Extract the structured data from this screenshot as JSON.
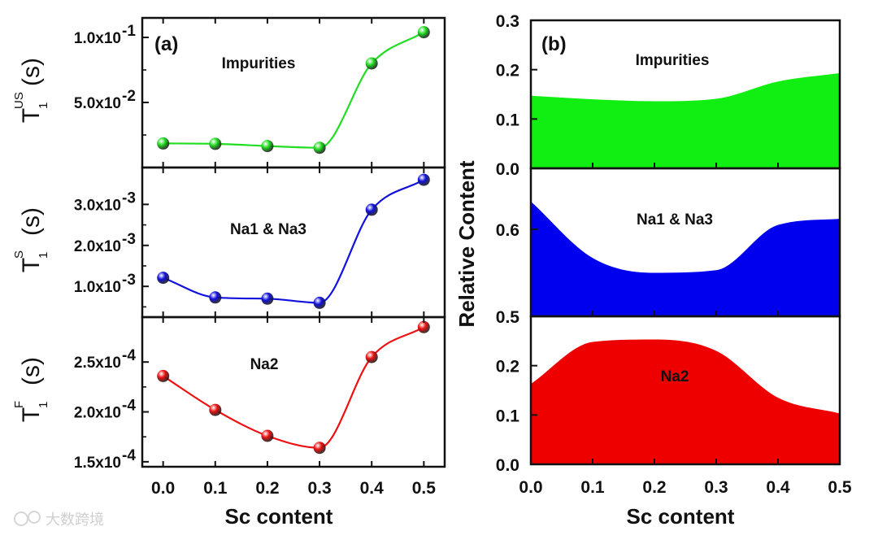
{
  "figure": {
    "watermark": "大数跨境",
    "xlabel": "Sc content"
  },
  "chart_data": [
    {
      "type": "scatter",
      "panel": "(a)",
      "xlabel": "Sc content",
      "xlim": [
        -0.04,
        0.54
      ],
      "xticks": [
        "0.0",
        "0.1",
        "0.2",
        "0.3",
        "0.4",
        "0.5"
      ],
      "subplots": [
        {
          "name": "Impurities",
          "ylabel": {
            "base": "T",
            "sub": "1",
            "sup": "US",
            "unit": "(s)"
          },
          "ylim": [
            0.0,
            0.115
          ],
          "yticks": [
            {
              "v": 0.05,
              "label": "5.0x10",
              "exp": "-2"
            },
            {
              "v": 0.1,
              "label": "1.0x10",
              "exp": "-1"
            }
          ],
          "color": "#22dd22",
          "x": [
            0.0,
            0.1,
            0.2,
            0.3,
            0.4,
            0.5
          ],
          "y": [
            0.0185,
            0.0182,
            0.0165,
            0.0152,
            0.08,
            0.104
          ]
        },
        {
          "name": "Na1 & Na3",
          "ylabel": {
            "base": "T",
            "sub": "1",
            "sup": "S",
            "unit": "(s)"
          },
          "ylim": [
            0.00025,
            0.0039
          ],
          "yticks": [
            {
              "v": 0.001,
              "label": "1.0x10",
              "exp": "-3"
            },
            {
              "v": 0.002,
              "label": "2.0x10",
              "exp": "-3"
            },
            {
              "v": 0.003,
              "label": "3.0x10",
              "exp": "-3"
            }
          ],
          "color": "#1111dd",
          "x": [
            0.0,
            0.1,
            0.2,
            0.3,
            0.4,
            0.5
          ],
          "y": [
            0.00121,
            0.00073,
            0.0007,
            0.0006,
            0.00287,
            0.0036
          ]
        },
        {
          "name": "Na2",
          "ylabel": {
            "base": "T",
            "sub": "1",
            "sup": "F",
            "unit": "(s)"
          },
          "ylim": [
            0.000145,
            0.000295
          ],
          "yticks": [
            {
              "v": 0.00015,
              "label": "1.5x10",
              "exp": "-4"
            },
            {
              "v": 0.0002,
              "label": "2.0x10",
              "exp": "-4"
            },
            {
              "v": 0.00025,
              "label": "2.5x10",
              "exp": "-4"
            }
          ],
          "color": "#ee1111",
          "x": [
            0.0,
            0.1,
            0.2,
            0.3,
            0.4,
            0.5
          ],
          "y": [
            0.000236,
            0.000202,
            0.000176,
            0.000164,
            0.000255,
            0.000285
          ]
        }
      ]
    },
    {
      "type": "area",
      "panel": "(b)",
      "xlabel": "Sc content",
      "ylabel": "Relative Content",
      "xlim": [
        0.0,
        0.5
      ],
      "xticks": [
        "0.0",
        "0.1",
        "0.2",
        "0.3",
        "0.4",
        "0.5"
      ],
      "subplots": [
        {
          "name": "Impurities",
          "ylim": [
            0.0,
            0.3
          ],
          "yticks": [
            "0.0",
            "0.1",
            "0.2",
            "0.3"
          ],
          "ytick_values": [
            0.0,
            0.1,
            0.2,
            0.3
          ],
          "color": "#11ee11",
          "x": [
            0.0,
            0.1,
            0.2,
            0.3,
            0.4,
            0.5
          ],
          "y": [
            0.147,
            0.14,
            0.136,
            0.141,
            0.176,
            0.193
          ]
        },
        {
          "name": "Na1 & Na3",
          "ylim": [
            0.5,
            0.67
          ],
          "yticks": [
            "0.5",
            "0.6"
          ],
          "ytick_values": [
            0.5,
            0.6
          ],
          "color": "#0000ee",
          "x": [
            0.0,
            0.1,
            0.2,
            0.3,
            0.4,
            0.5
          ],
          "y": [
            0.632,
            0.567,
            0.55,
            0.553,
            0.605,
            0.612
          ]
        },
        {
          "name": "Na2",
          "ylim": [
            0.0,
            0.3
          ],
          "yticks": [
            "0.0",
            "0.1",
            "0.2"
          ],
          "ytick_values": [
            0.0,
            0.1,
            0.2
          ],
          "color": "#ee0000",
          "x": [
            0.0,
            0.1,
            0.2,
            0.3,
            0.4,
            0.5
          ],
          "y": [
            0.163,
            0.248,
            0.253,
            0.23,
            0.135,
            0.103
          ]
        }
      ]
    }
  ]
}
